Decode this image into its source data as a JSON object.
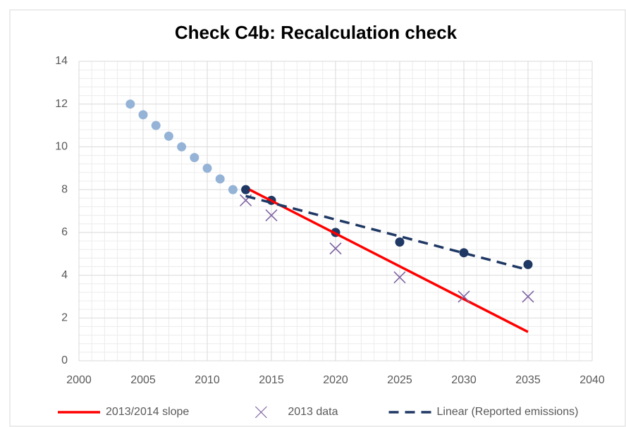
{
  "chart_data": {
    "type": "line",
    "title": "Check C4b: Recalculation check",
    "xlim": [
      2000,
      2040
    ],
    "xticks": [
      2000,
      2005,
      2010,
      2015,
      2020,
      2025,
      2030,
      2035,
      2040
    ],
    "ylim": [
      0,
      14
    ],
    "yticks": [
      0,
      2,
      4,
      6,
      8,
      10,
      12,
      14
    ],
    "grid": true,
    "minor_grid": true,
    "legend": "bottom",
    "series": [
      {
        "color": "#95b3d7",
        "marker": "circle",
        "x": [
          2004,
          2005,
          2006,
          2007,
          2008,
          2009,
          2010,
          2011,
          2012
        ],
        "values": [
          12,
          11.5,
          11,
          10.5,
          10,
          9.5,
          9,
          8.5,
          8
        ]
      },
      {
        "color": "#1f3864",
        "marker": "circle",
        "x": [
          2013,
          2015,
          2020,
          2025,
          2030,
          2035
        ],
        "values": [
          8,
          7.5,
          6,
          5.55,
          5.05,
          4.5
        ]
      },
      {
        "name": "2013/2014 slope",
        "color": "#ff0000",
        "line": "solid",
        "x": [
          2013.3,
          2035
        ],
        "values": [
          8,
          1.35
        ]
      },
      {
        "name": "2013 data",
        "color": "#8064a2",
        "marker": "x",
        "x": [
          2013,
          2015,
          2020,
          2025,
          2030,
          2035
        ],
        "values": [
          7.5,
          6.8,
          5.25,
          3.9,
          3,
          3
        ]
      },
      {
        "name": "Linear (Reported emissions)",
        "color": "#1f3864",
        "line": "dashed",
        "x": [
          2013,
          2035
        ],
        "values": [
          7.7,
          4.25
        ]
      }
    ]
  }
}
